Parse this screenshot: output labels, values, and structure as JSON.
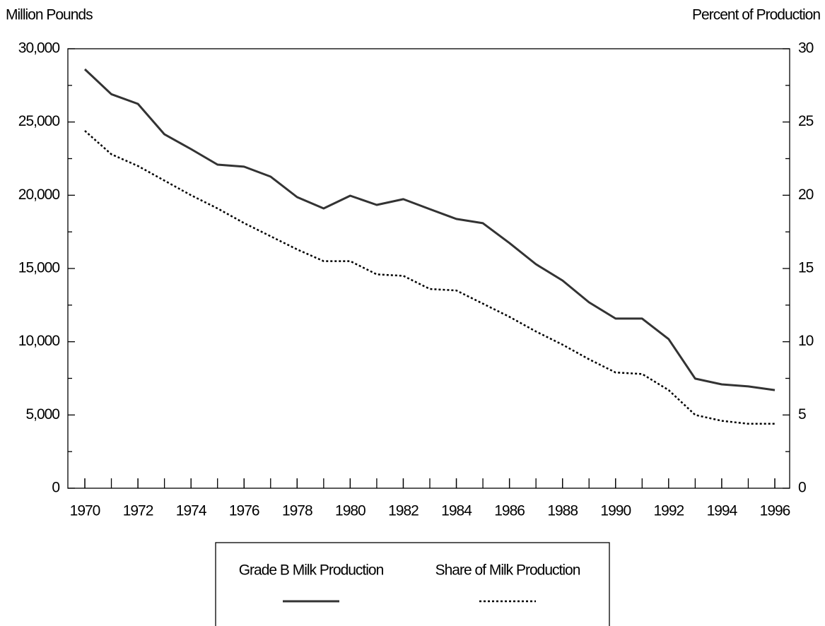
{
  "chart_data": {
    "type": "line",
    "y_label": "Million Pounds",
    "y2_label": "Percent of Production",
    "x": [
      1970,
      1971,
      1972,
      1973,
      1974,
      1975,
      1976,
      1977,
      1978,
      1979,
      1980,
      1981,
      1982,
      1983,
      1984,
      1985,
      1986,
      1987,
      1988,
      1989,
      1990,
      1991,
      1992,
      1993,
      1994,
      1995,
      1996
    ],
    "series": [
      {
        "name": "Grade B Milk Production",
        "color": "#333333",
        "dash": "solid",
        "values": [
          28600,
          26900,
          26240,
          24160,
          23150,
          22090,
          21950,
          21270,
          19870,
          19100,
          19970,
          19340,
          19730,
          19050,
          18380,
          18090,
          16740,
          15290,
          14180,
          12690,
          11580,
          11580,
          10180,
          7480,
          7090,
          6950,
          6700
        ]
      },
      {
        "name": "Share of Milk Production",
        "color": "#000000",
        "dash": "dotted",
        "axis": "y2",
        "values": [
          24.4,
          22.8,
          22.0,
          21.0,
          20.0,
          19.1,
          18.1,
          17.2,
          16.3,
          15.5,
          15.5,
          14.6,
          14.5,
          13.6,
          13.5,
          12.6,
          11.7,
          10.7,
          9.8,
          8.8,
          7.9,
          7.8,
          6.7,
          5.0,
          4.6,
          4.4,
          4.4
        ]
      }
    ],
    "xlim": [
      1970,
      1996
    ],
    "xticks": [
      1970,
      1972,
      1974,
      1976,
      1978,
      1980,
      1982,
      1984,
      1986,
      1988,
      1990,
      1992,
      1994,
      1996
    ],
    "ylim": [
      0,
      30000
    ],
    "yticks": [
      0,
      {
        "value": 5000,
        "label": "5,000"
      },
      {
        "value": 10000,
        "label": "10,000"
      },
      {
        "value": 15000,
        "label": "15,000"
      },
      {
        "value": 20000,
        "label": "20,000"
      },
      {
        "value": 25000,
        "label": "25,000"
      },
      {
        "value": 30000,
        "label": "30,000"
      }
    ],
    "y2lim": [
      0,
      30
    ],
    "y2ticks": [
      0,
      5,
      10,
      15,
      20,
      25,
      30
    ],
    "grid": false,
    "legend": "bottom"
  }
}
